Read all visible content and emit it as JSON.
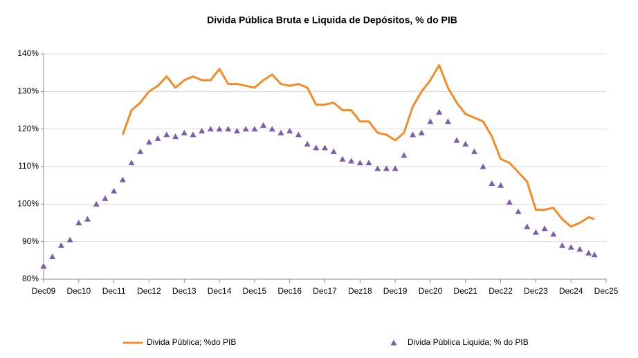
{
  "chart_data": {
    "type": "line-scatter",
    "title": "Divida Pública Bruta e Liquida de Depósitos, % do PIB",
    "x": [
      "2009-12",
      "2010-03",
      "2010-06",
      "2010-09",
      "2010-12",
      "2011-03",
      "2011-06",
      "2011-09",
      "2011-12",
      "2012-03",
      "2012-06",
      "2012-09",
      "2012-12",
      "2013-03",
      "2013-06",
      "2013-09",
      "2013-12",
      "2014-03",
      "2014-06",
      "2014-09",
      "2014-12",
      "2015-03",
      "2015-06",
      "2015-09",
      "2015-12",
      "2016-03",
      "2016-06",
      "2016-09",
      "2016-12",
      "2017-03",
      "2017-06",
      "2017-09",
      "2017-12",
      "2018-03",
      "2018-06",
      "2018-09",
      "2018-12",
      "2019-03",
      "2019-06",
      "2019-09",
      "2019-12",
      "2020-03",
      "2020-06",
      "2020-09",
      "2020-12",
      "2021-03",
      "2021-06",
      "2021-09",
      "2021-12",
      "2022-03",
      "2022-06",
      "2022-09",
      "2022-12",
      "2023-03",
      "2023-06",
      "2023-09",
      "2023-12",
      "2024-03",
      "2024-06",
      "2024-09",
      "2024-12",
      "2025-03",
      "2025-06",
      "2025-08"
    ],
    "series": [
      {
        "name": "Divida Pública; %do PIB",
        "mark": "line",
        "color": "#f28c28",
        "values": [
          null,
          null,
          null,
          null,
          null,
          null,
          null,
          null,
          null,
          118.5,
          125,
          127,
          130,
          131.5,
          134,
          131,
          133,
          134,
          133,
          133,
          136,
          132,
          132,
          131.5,
          131,
          133,
          134.5,
          132,
          131.5,
          132,
          131,
          126.5,
          126.5,
          127,
          125,
          125,
          122,
          122,
          119,
          118.5,
          117,
          119,
          126,
          130,
          133,
          137,
          131,
          127,
          124,
          123,
          122,
          118,
          112,
          111,
          108.5,
          106,
          98.5,
          98.5,
          99,
          96,
          94,
          95,
          96.5,
          96
        ]
      },
      {
        "name": "Divida Pública Liquida; % do PIB",
        "mark": "triangle",
        "color": "#7b5ea7",
        "values": [
          83.5,
          86,
          89,
          90.5,
          95,
          96,
          100,
          101.5,
          103.5,
          106.5,
          111,
          114,
          116.5,
          117.5,
          118.5,
          118,
          119,
          118.5,
          119.5,
          120,
          120,
          120,
          119.5,
          120,
          120,
          121,
          120,
          119,
          119.5,
          118.5,
          116,
          115,
          115,
          114,
          112,
          111.5,
          111,
          111,
          109.5,
          109.5,
          109.5,
          113,
          118.5,
          119,
          122,
          124.5,
          122,
          117,
          116,
          114,
          110,
          105.5,
          105,
          100.5,
          98,
          94,
          92.5,
          93.5,
          92,
          89,
          88.5,
          88,
          87,
          86.5
        ]
      }
    ],
    "xlim": [
      "2009-12",
      "2025-12"
    ],
    "xticks": [
      {
        "value": "2009-12",
        "label": "Dec09"
      },
      {
        "value": "2010-12",
        "label": "Dec10"
      },
      {
        "value": "2011-12",
        "label": "Dec11"
      },
      {
        "value": "2012-12",
        "label": "Dec12"
      },
      {
        "value": "2013-12",
        "label": "Dec13"
      },
      {
        "value": "2014-12",
        "label": "Dec14"
      },
      {
        "value": "2015-12",
        "label": "Dec15"
      },
      {
        "value": "2016-12",
        "label": "Dec16"
      },
      {
        "value": "2017-12",
        "label": "Dec17"
      },
      {
        "value": "2018-12",
        "label": "Dez18"
      },
      {
        "value": "2019-12",
        "label": "Dec19"
      },
      {
        "value": "2020-12",
        "label": "Dec20"
      },
      {
        "value": "2021-12",
        "label": "Dec21"
      },
      {
        "value": "2022-12",
        "label": "Dec22"
      },
      {
        "value": "2023-12",
        "label": "Dec23"
      },
      {
        "value": "2024-12",
        "label": "Dec24"
      },
      {
        "value": "2025-12",
        "label": "Dec25"
      }
    ],
    "ylim": [
      80,
      140
    ],
    "yticks": [
      {
        "value": 80,
        "label": "80%"
      },
      {
        "value": 90,
        "label": "90%"
      },
      {
        "value": 100,
        "label": "100%"
      },
      {
        "value": 110,
        "label": "110%"
      },
      {
        "value": 120,
        "label": "120%"
      },
      {
        "value": 130,
        "label": "130%"
      },
      {
        "value": 140,
        "label": "140%"
      }
    ],
    "grid": true,
    "legend": "bottom"
  }
}
